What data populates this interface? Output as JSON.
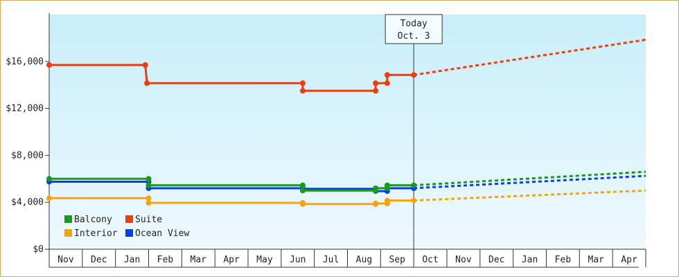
{
  "chart_data": {
    "type": "line",
    "title": "",
    "xlabel": "",
    "ylabel": "",
    "ylim": [
      0,
      20000
    ],
    "y_ticks": [
      "$0",
      "$4,000",
      "$8,000",
      "$12,000",
      "$16,000"
    ],
    "y_tick_values": [
      0,
      4000,
      8000,
      12000,
      16000
    ],
    "month_labels": [
      "Nov",
      "Dec",
      "Jan",
      "Feb",
      "Mar",
      "Apr",
      "May",
      "Jun",
      "Jul",
      "Aug",
      "Sep",
      "Oct",
      "Nov",
      "Dec",
      "Jan",
      "Feb",
      "Mar",
      "Apr"
    ],
    "today_marker": {
      "line1": "Today",
      "line2": "Oct. 3",
      "x": 11.0
    },
    "grid": false,
    "legend_position": "bottom-left",
    "series": [
      {
        "name": "Balcony",
        "color": "#1a9a1a",
        "points": [
          [
            0,
            6000
          ],
          [
            3.0,
            6000
          ],
          [
            3.0,
            5450
          ],
          [
            7.65,
            5450
          ],
          [
            7.65,
            5000
          ],
          [
            9.85,
            5000
          ],
          [
            9.85,
            5200
          ],
          [
            10.2,
            5200
          ],
          [
            10.2,
            5450
          ],
          [
            11.0,
            5450
          ]
        ],
        "forecast": [
          [
            11.0,
            5450
          ],
          [
            18.0,
            6600
          ]
        ]
      },
      {
        "name": "Suite",
        "color": "#f03c0a",
        "points": [
          [
            0,
            15700
          ],
          [
            2.9,
            15700
          ],
          [
            2.95,
            14150
          ],
          [
            7.65,
            14150
          ],
          [
            7.65,
            13500
          ],
          [
            9.85,
            13500
          ],
          [
            9.85,
            14150
          ],
          [
            10.2,
            14150
          ],
          [
            10.2,
            14850
          ],
          [
            11.0,
            14850
          ]
        ],
        "forecast": [
          [
            11.0,
            14850
          ],
          [
            18.0,
            17850
          ]
        ]
      },
      {
        "name": "Interior",
        "color": "#f5a50a",
        "points": [
          [
            0,
            4350
          ],
          [
            3.0,
            4350
          ],
          [
            3.0,
            3950
          ],
          [
            7.65,
            3950
          ],
          [
            7.65,
            3850
          ],
          [
            9.85,
            3850
          ],
          [
            9.85,
            3900
          ],
          [
            10.2,
            3900
          ],
          [
            10.2,
            4150
          ],
          [
            11.0,
            4150
          ]
        ],
        "forecast": [
          [
            11.0,
            4150
          ],
          [
            18.0,
            5000
          ]
        ]
      },
      {
        "name": "Ocean View",
        "color": "#0a3cf0",
        "points": [
          [
            0,
            5750
          ],
          [
            3.0,
            5750
          ],
          [
            3.0,
            5200
          ],
          [
            7.65,
            5200
          ],
          [
            7.65,
            5150
          ],
          [
            9.85,
            5150
          ],
          [
            9.85,
            4950
          ],
          [
            10.2,
            4950
          ],
          [
            10.2,
            5200
          ],
          [
            11.0,
            5200
          ]
        ],
        "forecast": [
          [
            11.0,
            5200
          ],
          [
            18.0,
            6250
          ]
        ]
      }
    ],
    "markers": [
      {
        "series": "Suite",
        "x": [
          0,
          2.9,
          2.95,
          7.65,
          7.65,
          9.85,
          9.85,
          10.2,
          10.2,
          11.0
        ],
        "y": [
          15700,
          15700,
          14150,
          14150,
          13500,
          13500,
          14150,
          14150,
          14850,
          14850
        ]
      }
    ]
  },
  "legend": [
    {
      "label": "Balcony",
      "color": "#1a9a1a"
    },
    {
      "label": "Suite",
      "color": "#f03c0a"
    },
    {
      "label": "Interior",
      "color": "#f5a50a"
    },
    {
      "label": "Ocean View",
      "color": "#0a3cf0"
    }
  ],
  "colors": {
    "plot_top": "#c8eefa",
    "plot_bottom": "#eef9fe",
    "frame_border": "#e0a45c"
  }
}
